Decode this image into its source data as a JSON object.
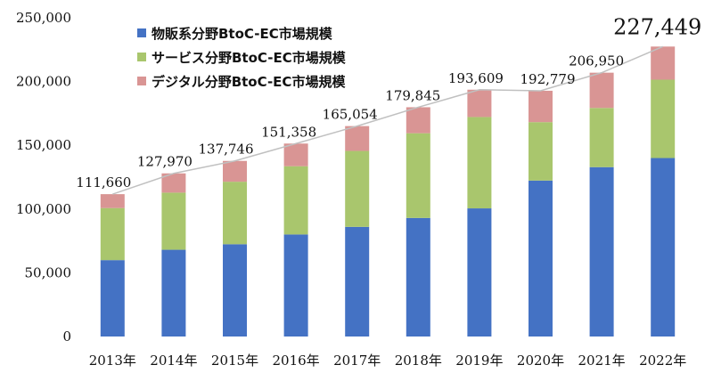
{
  "chart_data": {
    "type": "bar",
    "stacked": true,
    "categories": [
      "2013年",
      "2014年",
      "2015年",
      "2016年",
      "2017年",
      "2018年",
      "2019年",
      "2020年",
      "2021年",
      "2022年"
    ],
    "series": [
      {
        "name": "物販系分野BtoC-EC市場規模",
        "color": "#4472c4",
        "values": [
          59931,
          68043,
          72398,
          80043,
          86008,
          92992,
          100515,
          122333,
          132865,
          139997
        ]
      },
      {
        "name": "サービス分野BtoC-EC市場規模",
        "color": "#a9c66d",
        "values": [
          40838,
          44816,
          49014,
          53532,
          59568,
          66471,
          71672,
          45832,
          46424,
          61477
        ]
      },
      {
        "name": "デジタル分野BtoC-EC市場規模",
        "color": "#d99594",
        "values": [
          10891,
          15111,
          16334,
          17782,
          19478,
          20382,
          21422,
          24614,
          27661,
          25975
        ]
      }
    ],
    "totals": [
      111660,
      127970,
      137746,
      151358,
      165054,
      179845,
      193609,
      192779,
      206950,
      227449
    ],
    "total_labels": [
      "111,660",
      "127,970",
      "137,746",
      "151,358",
      "165,054",
      "179,845",
      "193,609",
      "192,779",
      "206,950",
      "227,449"
    ],
    "y_ticks": [
      "0",
      "50,000",
      "100,000",
      "150,000",
      "200,000",
      "250,000"
    ],
    "ylim": [
      0,
      250000
    ],
    "legend_position": "top-left",
    "total_line_color": "#c0c0c0",
    "grid": false
  }
}
